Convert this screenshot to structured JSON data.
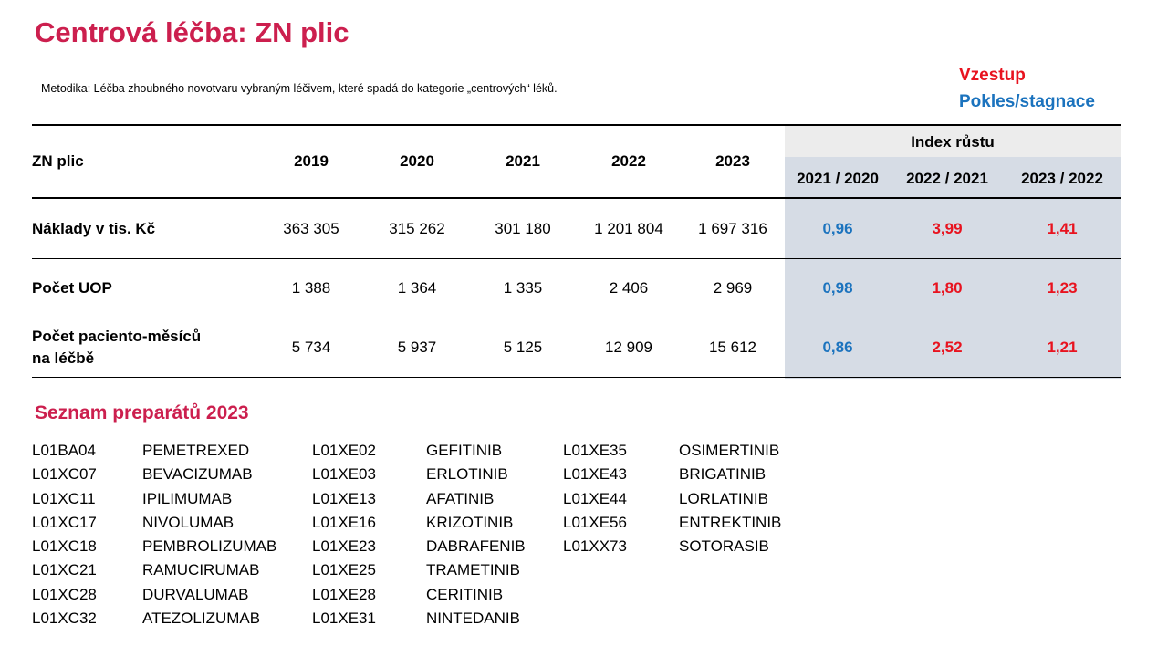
{
  "title": "Centrová léčba: ZN plic",
  "methodology": "Metodika: Léčba zhoubného novotvaru vybraným léčivem, které spadá do kategorie „centrových“ léků.",
  "legend": {
    "up_label": "Vzestup",
    "down_label": "Pokles/stagnace",
    "up_color": "#e8131f",
    "down_color": "#1b73be"
  },
  "table": {
    "row_header": "ZN plic",
    "years": [
      "2019",
      "2020",
      "2021",
      "2022",
      "2023"
    ],
    "index_header": "Index růstu",
    "index_periods": [
      "2021 / 2020",
      "2022 / 2021",
      "2023 / 2022"
    ],
    "rows": [
      {
        "label": "Náklady v tis. Kč",
        "values": [
          "363 305",
          "315 262",
          "301 180",
          "1 201 804",
          "1 697 316"
        ],
        "indices": [
          {
            "value": "0,96",
            "trend": "down"
          },
          {
            "value": "3,99",
            "trend": "up"
          },
          {
            "value": "1,41",
            "trend": "up"
          }
        ]
      },
      {
        "label": "Počet UOP",
        "values": [
          "1 388",
          "1 364",
          "1 335",
          "2 406",
          "2 969"
        ],
        "indices": [
          {
            "value": "0,98",
            "trend": "down"
          },
          {
            "value": "1,80",
            "trend": "up"
          },
          {
            "value": "1,23",
            "trend": "up"
          }
        ]
      },
      {
        "label_line1": "Počet paciento-měsíců",
        "label_line2": "na léčbě",
        "values": [
          "5 734",
          "5 937",
          "5 125",
          "12 909",
          "15 612"
        ],
        "indices": [
          {
            "value": "0,86",
            "trend": "down"
          },
          {
            "value": "2,52",
            "trend": "up"
          },
          {
            "value": "1,21",
            "trend": "up"
          }
        ]
      }
    ]
  },
  "drug_list": {
    "title": "Seznam preparátů 2023",
    "columns": [
      {
        "codes": [
          "L01BA04",
          "L01XC07",
          "L01XC11",
          "L01XC17",
          "L01XC18",
          "L01XC21",
          "L01XC28",
          "L01XC32"
        ],
        "names": [
          "PEMETREXED",
          "BEVACIZUMAB",
          "IPILIMUMAB",
          "NIVOLUMAB",
          "PEMBROLIZUMAB",
          "RAMUCIRUMAB",
          "DURVALUMAB",
          "ATEZOLIZUMAB"
        ]
      },
      {
        "codes": [
          "L01XE02",
          "L01XE03",
          "L01XE13",
          "L01XE16",
          "L01XE23",
          "L01XE25",
          "L01XE28",
          "L01XE31"
        ],
        "names": [
          "GEFITINIB",
          "ERLOTINIB",
          "AFATINIB",
          "KRIZOTINIB",
          "DABRAFENIB",
          "TRAMETINIB",
          "CERITINIB",
          "NINTEDANIB"
        ]
      },
      {
        "codes": [
          "L01XE35",
          "L01XE43",
          "L01XE44",
          "L01XE56",
          "L01XX73"
        ],
        "names": [
          "OSIMERTINIB",
          "BRIGATINIB",
          "LORLATINIB",
          "ENTREKTINIB",
          "SOTORASIB"
        ]
      }
    ]
  }
}
